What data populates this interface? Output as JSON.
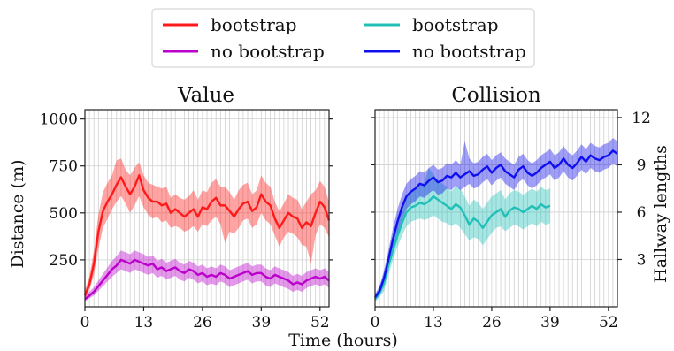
{
  "legend": [
    {
      "label": "bootstrap",
      "color": "#ff1a1a"
    },
    {
      "label": "no bootstrap",
      "color": "#bb00cc"
    },
    {
      "label": "bootstrap",
      "color": "#20c0b8"
    },
    {
      "label": "no bootstrap",
      "color": "#1010ee"
    }
  ],
  "xlabel": "Time (hours)",
  "chart_data": [
    {
      "type": "line",
      "title": "Value",
      "ylabel": "Distance (m)",
      "xlim": [
        0,
        54
      ],
      "ylim": [
        0,
        1050
      ],
      "xticks": [
        0,
        13,
        26,
        39,
        52
      ],
      "yticks": [
        250,
        500,
        750,
        1000
      ],
      "grid": true,
      "series": [
        {
          "name": "bootstrap",
          "color": "#ff1a1a",
          "x": [
            0,
            1,
            2,
            3,
            4,
            5,
            6,
            7,
            8,
            9,
            10,
            11,
            12,
            13,
            14,
            15,
            16,
            17,
            18,
            19,
            20,
            21,
            22,
            23,
            24,
            25,
            26,
            27,
            28,
            29,
            30,
            31,
            32,
            33,
            34,
            35,
            36,
            37,
            38,
            39,
            40,
            41,
            42,
            43,
            44,
            45,
            46,
            47,
            48,
            49,
            50,
            51,
            52,
            53,
            54
          ],
          "y": [
            60,
            120,
            230,
            400,
            510,
            560,
            600,
            650,
            690,
            640,
            600,
            640,
            700,
            620,
            580,
            560,
            560,
            540,
            550,
            500,
            520,
            500,
            480,
            500,
            520,
            480,
            530,
            520,
            560,
            580,
            540,
            540,
            510,
            480,
            520,
            550,
            560,
            510,
            530,
            600,
            560,
            540,
            470,
            420,
            460,
            500,
            480,
            470,
            420,
            450,
            430,
            500,
            560,
            530,
            460
          ],
          "lower": [
            40,
            90,
            170,
            310,
            420,
            470,
            520,
            560,
            590,
            550,
            500,
            540,
            590,
            530,
            490,
            470,
            480,
            450,
            460,
            420,
            430,
            420,
            400,
            410,
            430,
            400,
            440,
            430,
            460,
            480,
            440,
            340,
            400,
            390,
            420,
            460,
            470,
            420,
            440,
            500,
            460,
            440,
            380,
            320,
            370,
            400,
            390,
            370,
            330,
            320,
            230,
            380,
            440,
            420,
            370
          ],
          "upper": [
            90,
            160,
            300,
            490,
            610,
            660,
            700,
            780,
            790,
            730,
            700,
            740,
            770,
            700,
            660,
            650,
            640,
            630,
            640,
            580,
            600,
            580,
            570,
            590,
            620,
            570,
            620,
            610,
            660,
            680,
            640,
            640,
            610,
            570,
            620,
            650,
            660,
            600,
            620,
            700,
            660,
            640,
            560,
            510,
            550,
            600,
            580,
            570,
            520,
            560,
            600,
            620,
            670,
            640,
            560
          ]
        },
        {
          "name": "no bootstrap",
          "color": "#bb00cc",
          "x": [
            0,
            1,
            2,
            3,
            4,
            5,
            6,
            7,
            8,
            9,
            10,
            11,
            12,
            13,
            14,
            15,
            16,
            17,
            18,
            19,
            20,
            21,
            22,
            23,
            24,
            25,
            26,
            27,
            28,
            29,
            30,
            31,
            32,
            33,
            34,
            35,
            36,
            37,
            38,
            39,
            40,
            41,
            42,
            43,
            44,
            45,
            46,
            47,
            48,
            49,
            50,
            51,
            52,
            53,
            54
          ],
          "y": [
            40,
            60,
            80,
            110,
            140,
            170,
            200,
            220,
            250,
            240,
            230,
            250,
            240,
            230,
            220,
            230,
            200,
            210,
            190,
            200,
            210,
            190,
            180,
            200,
            190,
            170,
            180,
            160,
            170,
            160,
            180,
            170,
            150,
            160,
            170,
            180,
            190,
            170,
            180,
            180,
            160,
            150,
            170,
            160,
            150,
            140,
            120,
            130,
            120,
            140,
            150,
            160,
            150,
            160,
            140
          ],
          "lower": [
            30,
            45,
            60,
            85,
            110,
            135,
            160,
            180,
            200,
            190,
            180,
            200,
            190,
            180,
            170,
            180,
            155,
            165,
            145,
            155,
            165,
            145,
            135,
            155,
            145,
            125,
            135,
            115,
            125,
            115,
            135,
            125,
            105,
            115,
            125,
            135,
            145,
            125,
            135,
            135,
            115,
            105,
            125,
            115,
            105,
            95,
            80,
            90,
            80,
            100,
            110,
            120,
            110,
            120,
            100
          ],
          "upper": [
            55,
            80,
            105,
            140,
            175,
            210,
            245,
            270,
            300,
            290,
            280,
            300,
            290,
            280,
            265,
            275,
            245,
            255,
            235,
            245,
            255,
            235,
            225,
            245,
            235,
            215,
            225,
            205,
            215,
            205,
            225,
            215,
            195,
            205,
            215,
            225,
            235,
            215,
            225,
            225,
            205,
            195,
            215,
            205,
            195,
            185,
            165,
            175,
            165,
            185,
            195,
            205,
            195,
            205,
            185
          ]
        }
      ]
    },
    {
      "type": "line",
      "title": "Collision",
      "ylabel": "Hallway lengths",
      "xlim": [
        0,
        54
      ],
      "ylim": [
        0,
        12.5
      ],
      "xticks": [
        0,
        13,
        26,
        39,
        52
      ],
      "yticks": [
        3,
        6,
        9,
        12
      ],
      "yaxis_side": "right",
      "grid": true,
      "series": [
        {
          "name": "bootstrap",
          "color": "#20c0b8",
          "x": [
            0,
            1,
            2,
            3,
            4,
            5,
            6,
            7,
            8,
            9,
            10,
            11,
            12,
            13,
            14,
            15,
            16,
            17,
            18,
            19,
            20,
            21,
            22,
            23,
            24,
            25,
            26,
            27,
            28,
            29,
            30,
            31,
            32,
            33,
            34,
            35,
            36,
            37,
            38,
            39
          ],
          "y": [
            0.5,
            0.9,
            1.5,
            2.6,
            3.6,
            4.5,
            5.3,
            6.0,
            6.3,
            6.4,
            6.6,
            6.5,
            6.7,
            7.0,
            6.8,
            6.6,
            6.4,
            6.2,
            6.5,
            6.3,
            5.8,
            5.2,
            5.6,
            5.4,
            5.0,
            5.4,
            5.8,
            6.0,
            6.2,
            5.7,
            6.1,
            6.3,
            6.2,
            6.0,
            6.2,
            6.4,
            6.2,
            6.5,
            6.3,
            6.4
          ],
          "lower": [
            0.3,
            0.6,
            1.0,
            2.0,
            3.0,
            3.8,
            4.5,
            5.1,
            5.4,
            5.5,
            5.6,
            5.5,
            5.6,
            5.8,
            5.6,
            5.4,
            5.3,
            5.1,
            5.3,
            5.0,
            4.6,
            4.2,
            4.4,
            4.3,
            3.9,
            4.3,
            4.7,
            5.0,
            5.1,
            4.8,
            5.0,
            5.2,
            5.1,
            4.9,
            5.1,
            5.3,
            5.1,
            5.4,
            5.2,
            5.3
          ],
          "upper": [
            0.7,
            1.3,
            2.1,
            3.3,
            4.4,
            5.3,
            6.2,
            7.0,
            7.3,
            7.4,
            7.7,
            7.9,
            8.8,
            8.4,
            8.0,
            7.8,
            7.6,
            7.3,
            7.7,
            7.5,
            7.0,
            6.4,
            6.8,
            6.6,
            6.2,
            6.6,
            7.0,
            7.2,
            7.4,
            6.8,
            7.2,
            7.4,
            7.3,
            7.1,
            7.3,
            7.5,
            7.3,
            7.6,
            7.4,
            7.5
          ]
        },
        {
          "name": "no bootstrap",
          "color": "#1010ee",
          "x": [
            0,
            1,
            2,
            3,
            4,
            5,
            6,
            7,
            8,
            9,
            10,
            11,
            12,
            13,
            14,
            15,
            16,
            17,
            18,
            19,
            20,
            21,
            22,
            23,
            24,
            25,
            26,
            27,
            28,
            29,
            30,
            31,
            32,
            33,
            34,
            35,
            36,
            37,
            38,
            39,
            40,
            41,
            42,
            43,
            44,
            45,
            46,
            47,
            48,
            49,
            50,
            51,
            52,
            53,
            54
          ],
          "y": [
            0.6,
            1.0,
            1.8,
            3.0,
            4.3,
            5.4,
            6.3,
            7.0,
            7.3,
            7.5,
            7.8,
            7.7,
            8.0,
            8.2,
            7.9,
            8.0,
            8.3,
            8.2,
            8.5,
            8.2,
            8.4,
            8.6,
            8.3,
            8.4,
            8.7,
            8.9,
            8.5,
            8.8,
            9.0,
            8.6,
            8.4,
            8.2,
            8.7,
            8.9,
            8.5,
            8.3,
            8.5,
            8.8,
            9.0,
            9.2,
            8.8,
            9.0,
            9.4,
            9.0,
            8.8,
            9.1,
            9.5,
            9.2,
            9.6,
            9.4,
            9.3,
            9.5,
            9.6,
            9.9,
            9.7
          ],
          "lower": [
            0.4,
            0.7,
            1.3,
            2.4,
            3.6,
            4.6,
            5.5,
            6.2,
            6.5,
            6.7,
            7.0,
            6.9,
            7.2,
            7.4,
            7.1,
            7.2,
            7.5,
            7.4,
            7.7,
            7.4,
            7.6,
            7.8,
            7.5,
            7.6,
            7.9,
            8.1,
            7.7,
            8.0,
            8.2,
            7.8,
            7.6,
            7.4,
            7.9,
            8.1,
            7.7,
            7.5,
            7.7,
            8.0,
            8.2,
            8.4,
            8.0,
            8.2,
            8.6,
            8.2,
            8.0,
            8.3,
            8.7,
            8.4,
            8.8,
            8.6,
            8.5,
            8.7,
            8.8,
            9.1,
            8.9
          ],
          "upper": [
            0.8,
            1.3,
            2.3,
            3.6,
            5.0,
            6.2,
            7.1,
            7.8,
            8.1,
            8.3,
            8.6,
            8.5,
            8.8,
            9.0,
            8.7,
            8.8,
            9.1,
            9.0,
            9.3,
            9.0,
            10.5,
            9.4,
            9.1,
            9.2,
            9.5,
            9.7,
            9.3,
            9.6,
            9.8,
            9.4,
            9.2,
            9.0,
            9.5,
            9.7,
            9.3,
            9.1,
            9.3,
            9.6,
            9.8,
            10.0,
            9.6,
            9.8,
            10.2,
            9.8,
            9.6,
            9.9,
            10.3,
            10.0,
            10.4,
            10.2,
            10.1,
            10.3,
            10.4,
            10.7,
            10.5
          ]
        }
      ]
    }
  ]
}
